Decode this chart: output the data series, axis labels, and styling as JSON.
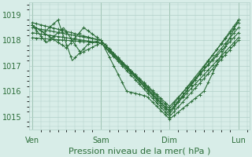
{
  "bg_color": "#d8ede8",
  "grid_color": "#b0d0c8",
  "line_color": "#2d6e3a",
  "marker": "+",
  "marker_size": 3,
  "linewidth": 0.8,
  "xlabel": "Pression niveau de la mer( hPa )",
  "xlabel_fontsize": 8,
  "tick_fontsize": 7,
  "yticks": [
    1015,
    1016,
    1017,
    1018,
    1019
  ],
  "ylim": [
    1014.5,
    1019.5
  ],
  "xtick_labels": [
    "Ven",
    "Sam",
    "Dim",
    "Lun"
  ],
  "xtick_positions": [
    0,
    48,
    96,
    144
  ],
  "xlim": [
    -2,
    152
  ],
  "series": [
    {
      "waypoints_x": [
        0,
        48,
        96,
        144
      ],
      "waypoints_y": [
        1018.7,
        1018.0,
        1015.1,
        1018.8
      ],
      "n": 145
    },
    {
      "waypoints_x": [
        0,
        48,
        96,
        144
      ],
      "waypoints_y": [
        1018.5,
        1018.0,
        1015.3,
        1018.7
      ],
      "n": 145
    },
    {
      "waypoints_x": [
        0,
        48,
        96,
        144
      ],
      "waypoints_y": [
        1018.3,
        1017.9,
        1015.2,
        1018.5
      ],
      "n": 145
    },
    {
      "waypoints_x": [
        0,
        48,
        96,
        144
      ],
      "waypoints_y": [
        1018.1,
        1017.9,
        1015.4,
        1018.3
      ],
      "n": 145
    },
    {
      "waypoints_x": [
        0,
        24,
        36,
        48,
        96,
        144
      ],
      "waypoints_y": [
        1018.6,
        1017.7,
        1018.5,
        1018.0,
        1015.2,
        1018.1
      ],
      "n": 145
    },
    {
      "waypoints_x": [
        0,
        10,
        22,
        34,
        48,
        96,
        144
      ],
      "waypoints_y": [
        1018.6,
        1017.9,
        1018.5,
        1017.5,
        1017.9,
        1015.0,
        1018.0
      ],
      "n": 145
    },
    {
      "waypoints_x": [
        0,
        8,
        18,
        28,
        40,
        48,
        66,
        80,
        96,
        120,
        144
      ],
      "waypoints_y": [
        1018.6,
        1018.3,
        1018.8,
        1017.2,
        1017.9,
        1018.0,
        1016.0,
        1015.8,
        1014.9,
        1016.0,
        1018.8
      ],
      "n": 145
    }
  ]
}
